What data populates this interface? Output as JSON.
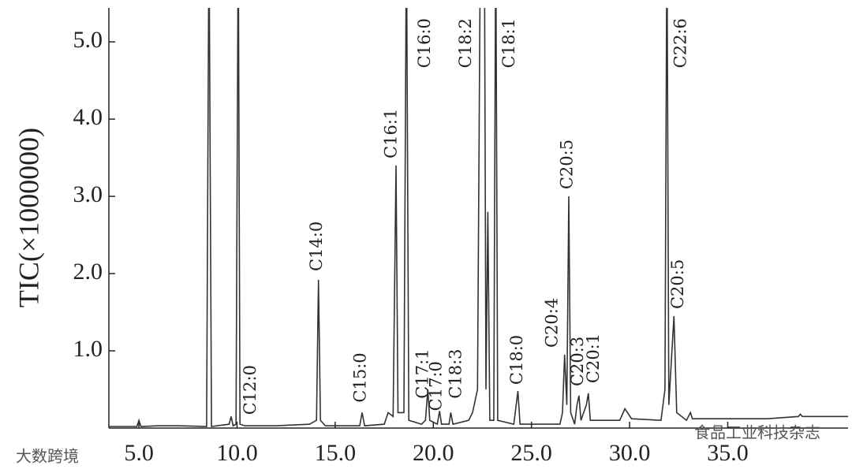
{
  "chart_data": {
    "type": "line",
    "ylabel": "TIC(×1000000)",
    "x": [
      3.47,
      4.9,
      5.0,
      5.1,
      6.0,
      7.0,
      8.45,
      8.57,
      8.7,
      9.6,
      9.7,
      9.8,
      9.95,
      10.06,
      10.15,
      10.4,
      12.0,
      13.7,
      14.05,
      14.15,
      14.25,
      14.5,
      16.25,
      16.37,
      16.5,
      17.5,
      17.7,
      17.95,
      18.1,
      18.2,
      18.5,
      18.63,
      18.75,
      19.4,
      19.6,
      19.72,
      19.82,
      20.2,
      20.32,
      20.42,
      20.8,
      20.89,
      21.0,
      21.8,
      22.0,
      22.25,
      22.4,
      22.6,
      22.68,
      22.78,
      22.88,
      23.08,
      23.18,
      23.28,
      24.1,
      24.31,
      24.42,
      26.45,
      26.58,
      26.69,
      26.8,
      26.9,
      27.0,
      27.2,
      27.32,
      27.42,
      27.52,
      27.8,
      27.9,
      28.0,
      29.5,
      29.76,
      30.1,
      31.6,
      31.8,
      31.9,
      32.0,
      32.26,
      32.4,
      32.9,
      33.1,
      33.2,
      35.5,
      37.0,
      38.6,
      38.7,
      38.8,
      41.13
    ],
    "series": [
      {
        "color": "#333333",
        "values": [
          0.02,
          0.02,
          0.1,
          0.02,
          0.03,
          0.03,
          0.02,
          6.5,
          0.02,
          0.05,
          0.15,
          0.03,
          0.05,
          6.5,
          0.05,
          0.03,
          0.03,
          0.05,
          0.1,
          1.92,
          0.1,
          0.03,
          0.03,
          0.2,
          0.03,
          0.05,
          0.2,
          0.15,
          3.4,
          0.2,
          0.2,
          6.5,
          0.1,
          0.05,
          0.1,
          0.5,
          0.1,
          0.05,
          0.22,
          0.05,
          0.05,
          0.2,
          0.05,
          0.1,
          0.2,
          0.5,
          6.5,
          6.5,
          0.5,
          2.8,
          0.1,
          0.1,
          6.5,
          0.1,
          0.05,
          0.48,
          0.05,
          0.05,
          0.2,
          0.95,
          0.3,
          3.0,
          0.2,
          0.05,
          0.3,
          0.42,
          0.1,
          0.3,
          0.45,
          0.1,
          0.1,
          0.25,
          0.12,
          0.1,
          0.5,
          6.5,
          0.3,
          1.45,
          0.2,
          0.1,
          0.2,
          0.12,
          0.12,
          0.12,
          0.15,
          0.18,
          0.15,
          0.15
        ]
      }
    ],
    "xlim": [
      3.47,
      41.13
    ],
    "ylim": [
      0,
      5.44
    ],
    "xticks": [
      {
        "value": 5,
        "label": "5.0"
      },
      {
        "value": 10,
        "label": "10.0"
      },
      {
        "value": 15,
        "label": "15.0"
      },
      {
        "value": 20,
        "label": "20.0"
      },
      {
        "value": 25,
        "label": "25.0"
      },
      {
        "value": 30,
        "label": "30.0"
      },
      {
        "value": 35,
        "label": "35.0"
      }
    ],
    "yticks": [
      {
        "value": 1,
        "label": "1.0"
      },
      {
        "value": 2,
        "label": "2.0"
      },
      {
        "value": 3,
        "label": "3.0"
      },
      {
        "value": 4,
        "label": "4.0"
      },
      {
        "value": 5,
        "label": "5.0"
      }
    ],
    "annotations": [
      {
        "text": "C12:0",
        "x": 10.73,
        "y": 0.13
      },
      {
        "text": "C14:0",
        "x": 14.1,
        "y": 1.99
      },
      {
        "text": "C15:0",
        "x": 16.33,
        "y": 0.29
      },
      {
        "text": "C16:1",
        "x": 17.9,
        "y": 3.45
      },
      {
        "text": "C16:0",
        "x": 19.6,
        "y": 4.62
      },
      {
        "text": "C17:1",
        "x": 19.5,
        "y": 0.34
      },
      {
        "text": "C17:0",
        "x": 20.2,
        "y": 0.18
      },
      {
        "text": "C18:3",
        "x": 21.2,
        "y": 0.34
      },
      {
        "text": "C18:2",
        "x": 21.7,
        "y": 4.62
      },
      {
        "text": "C18:1",
        "x": 23.9,
        "y": 4.62
      },
      {
        "text": "C18:0",
        "x": 24.3,
        "y": 0.52
      },
      {
        "text": "C20:4",
        "x": 26.1,
        "y": 1.0
      },
      {
        "text": "C20:5",
        "x": 26.86,
        "y": 3.05
      },
      {
        "text": "C20:3",
        "x": 27.4,
        "y": 0.5
      },
      {
        "text": "C20:1",
        "x": 28.2,
        "y": 0.54
      },
      {
        "text": "C22:6",
        "x": 32.66,
        "y": 4.62
      },
      {
        "text": "C20:5",
        "x": 32.5,
        "y": 1.5
      }
    ]
  },
  "watermarks": [
    "食品工业科技杂志",
    "大数跨境"
  ]
}
